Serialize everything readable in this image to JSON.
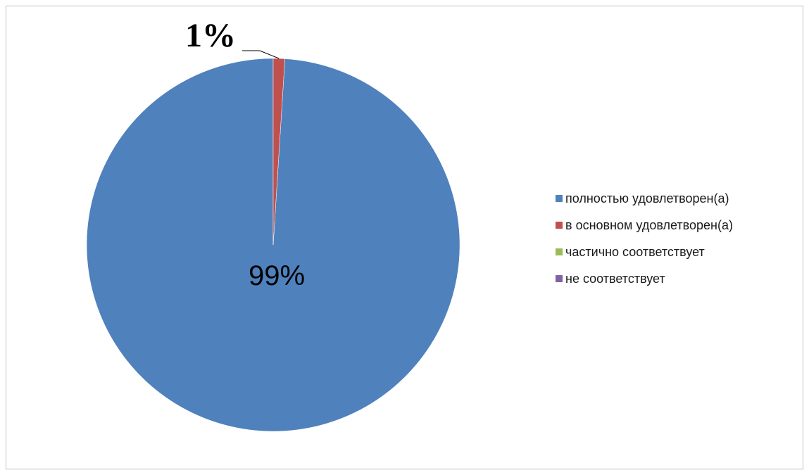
{
  "chart_data": {
    "type": "pie",
    "title": "",
    "categories": [
      "полностью удовлетворен(а)",
      "в основном удовлетворен(а)",
      "частично соответствует",
      "не соответствует"
    ],
    "values": [
      99,
      1,
      0,
      0
    ],
    "data_labels": [
      "99%",
      "1%",
      "",
      ""
    ],
    "colors": [
      "#4f81bd",
      "#c0504d",
      "#9bbb59",
      "#8064a2"
    ],
    "legend_position": "right",
    "grid": false
  }
}
